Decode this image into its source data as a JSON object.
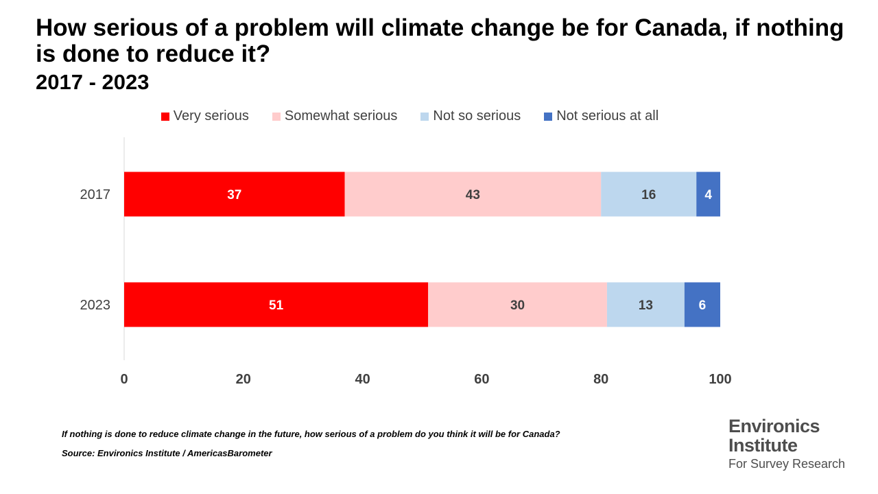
{
  "chart_data": {
    "type": "bar",
    "orientation": "horizontal",
    "stacked": true,
    "title": "How serious of a problem will climate change be for Canada, if nothing is done to reduce it?",
    "subtitle": "2017 - 2023",
    "categories": [
      "2017",
      "2023"
    ],
    "series": [
      {
        "name": "Very serious",
        "color": "#ff0000",
        "label_color": "#ffffff",
        "values": [
          37,
          51
        ]
      },
      {
        "name": "Somewhat serious",
        "color": "#ffcccc",
        "label_color": "#404040",
        "values": [
          43,
          30
        ]
      },
      {
        "name": "Not so serious",
        "color": "#bdd7ee",
        "label_color": "#404040",
        "values": [
          16,
          13
        ]
      },
      {
        "name": "Not serious at all",
        "color": "#4472c4",
        "label_color": "#ffffff",
        "values": [
          4,
          6
        ]
      }
    ],
    "xlim": [
      0,
      100
    ],
    "xticks": [
      0,
      20,
      40,
      60,
      80,
      100
    ],
    "legend": "top",
    "grid": false
  },
  "footnote": {
    "question": "If nothing is done to reduce climate change in the future, how serious of a problem do you think it will be for Canada?",
    "source": "Source: Environics Institute / AmericasBarometer"
  },
  "logo": {
    "line1": "Environics",
    "line2": "Institute",
    "line3": "For Survey Research"
  }
}
